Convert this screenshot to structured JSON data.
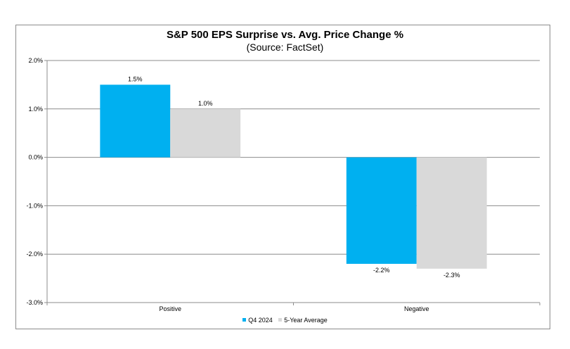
{
  "chart_data": {
    "type": "bar",
    "title": "S&P 500 EPS Surprise vs. Avg. Price Change %",
    "subtitle": "(Source: FactSet)",
    "categories": [
      "Positive",
      "Negative"
    ],
    "series": [
      {
        "name": "Q4 2024",
        "values": [
          1.5,
          -2.2
        ],
        "labels": [
          "1.5%",
          "-2.2%"
        ],
        "color": "#00b0f0"
      },
      {
        "name": "5-Year Average",
        "values": [
          1.0,
          -2.3
        ],
        "labels": [
          "1.0%",
          "-2.3%"
        ],
        "color": "#d9d9d9"
      }
    ],
    "ylim": [
      -3.0,
      2.0
    ],
    "yticks": [
      2.0,
      1.0,
      0.0,
      -1.0,
      -2.0,
      -3.0
    ],
    "ytick_labels": [
      "2.0%",
      "1.0%",
      "0.0%",
      "-1.0%",
      "-2.0%",
      "-3.0%"
    ],
    "xlabel": "",
    "ylabel": "",
    "grid": true,
    "legend_position": "bottom"
  }
}
